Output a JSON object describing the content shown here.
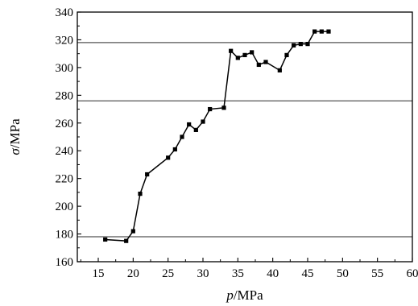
{
  "chart_data": {
    "type": "line",
    "title": "",
    "xlabel_var": "p",
    "xlabel_unit": "/MPa",
    "ylabel_var": "σ",
    "ylabel_unit": "/MPa",
    "xlim": [
      12,
      60
    ],
    "ylim": [
      160,
      340
    ],
    "xticks": [
      15,
      20,
      25,
      30,
      35,
      40,
      45,
      50,
      55,
      60
    ],
    "yticks": [
      160,
      180,
      200,
      220,
      240,
      260,
      280,
      300,
      320,
      340
    ],
    "grid": false,
    "hlines": [
      178,
      276,
      318
    ],
    "series": [
      {
        "marker": "square",
        "color": "#000000",
        "x": [
          16,
          19,
          20,
          21,
          22,
          25,
          26,
          27,
          28,
          29,
          30,
          31,
          33,
          34,
          35,
          36,
          37,
          38,
          39,
          41,
          42,
          43,
          44,
          45,
          46,
          47,
          48
        ],
        "y": [
          176,
          175,
          182,
          209,
          223,
          235,
          241,
          250,
          259,
          255,
          261,
          270,
          271,
          312,
          307,
          309,
          311,
          302,
          304,
          298,
          309,
          316,
          317,
          317,
          326,
          326,
          326
        ]
      }
    ]
  }
}
